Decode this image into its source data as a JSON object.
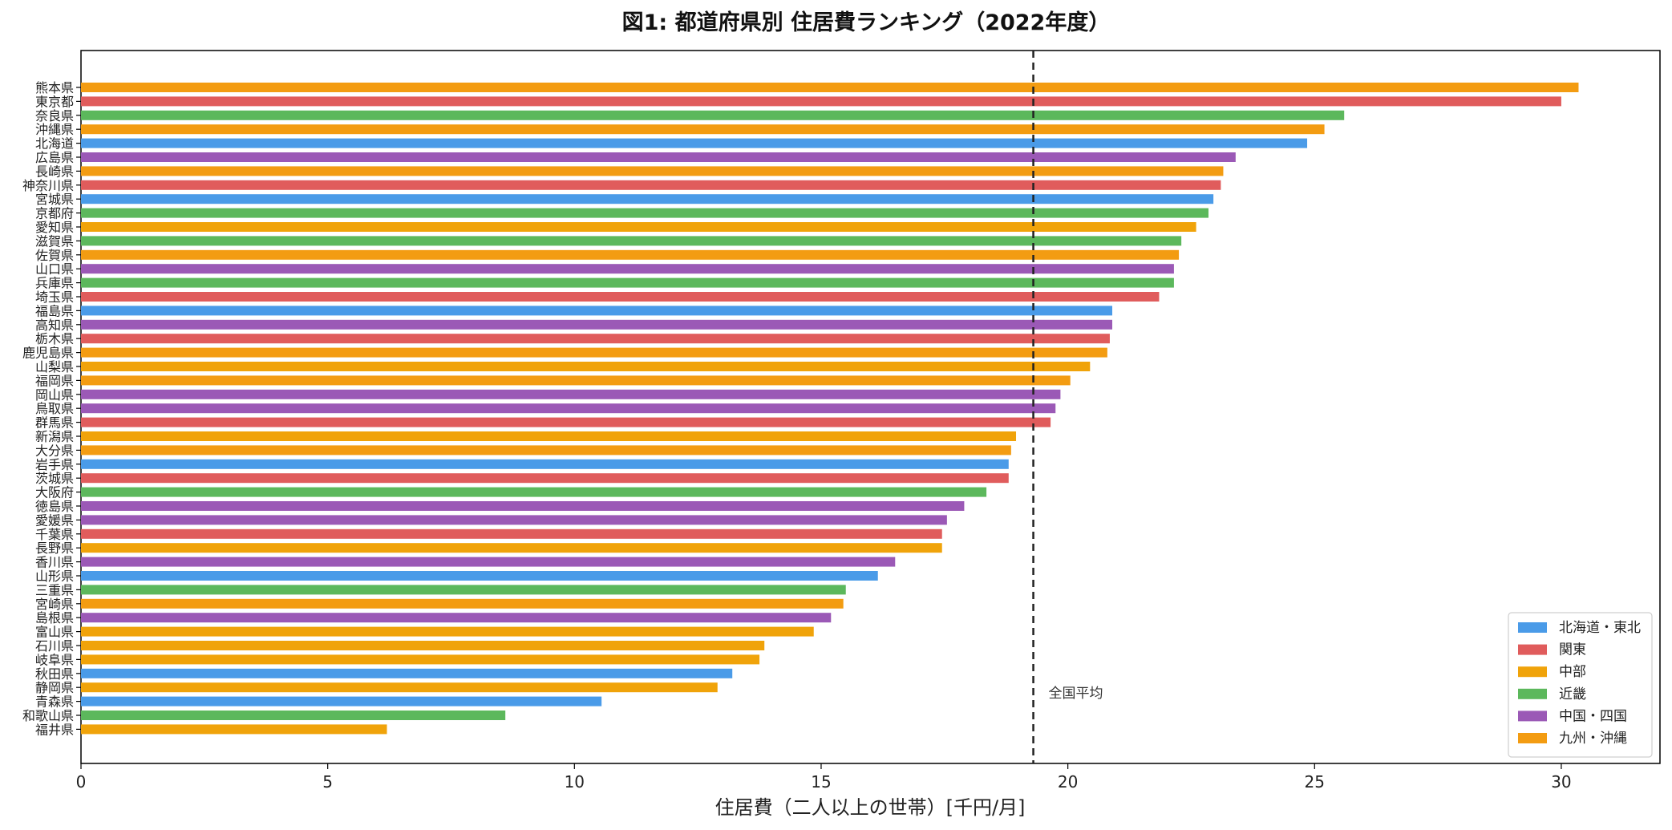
{
  "chart_data": {
    "type": "bar",
    "orientation": "horizontal",
    "title": "図1: 都道府県別 住居費ランキング（2022年度）",
    "xlabel": "住居費（二人以上の世帯）[千円/月]",
    "ylabel": "",
    "xlim": [
      0,
      32
    ],
    "xticks": [
      0,
      5,
      10,
      15,
      20,
      25,
      30
    ],
    "grid": false,
    "legend_position": "bottom-right",
    "regions": [
      {
        "name": "北海道・東北",
        "color": "#4a9be8"
      },
      {
        "name": "関東",
        "color": "#e05c5c"
      },
      {
        "name": "中部",
        "color": "#f0a30a"
      },
      {
        "name": "近畿",
        "color": "#5cb85c"
      },
      {
        "name": "中国・四国",
        "color": "#9b59b6"
      },
      {
        "name": "九州・沖縄",
        "color": "#f39c12"
      }
    ],
    "reference_line": {
      "label": "全国平均",
      "value": 19.3,
      "style": "dashed",
      "color": "#222222"
    },
    "bars": [
      {
        "category": "熊本県",
        "value": 30.35,
        "region": 5
      },
      {
        "category": "東京都",
        "value": 30.0,
        "region": 1
      },
      {
        "category": "奈良県",
        "value": 25.6,
        "region": 3
      },
      {
        "category": "沖縄県",
        "value": 25.2,
        "region": 5
      },
      {
        "category": "北海道",
        "value": 24.85,
        "region": 0
      },
      {
        "category": "広島県",
        "value": 23.4,
        "region": 4
      },
      {
        "category": "長崎県",
        "value": 23.15,
        "region": 5
      },
      {
        "category": "神奈川県",
        "value": 23.1,
        "region": 1
      },
      {
        "category": "宮城県",
        "value": 22.95,
        "region": 0
      },
      {
        "category": "京都府",
        "value": 22.85,
        "region": 3
      },
      {
        "category": "愛知県",
        "value": 22.6,
        "region": 2
      },
      {
        "category": "滋賀県",
        "value": 22.3,
        "region": 3
      },
      {
        "category": "佐賀県",
        "value": 22.25,
        "region": 5
      },
      {
        "category": "山口県",
        "value": 22.15,
        "region": 4
      },
      {
        "category": "兵庫県",
        "value": 22.15,
        "region": 3
      },
      {
        "category": "埼玉県",
        "value": 21.85,
        "region": 1
      },
      {
        "category": "福島県",
        "value": 20.9,
        "region": 0
      },
      {
        "category": "高知県",
        "value": 20.9,
        "region": 4
      },
      {
        "category": "栃木県",
        "value": 20.85,
        "region": 1
      },
      {
        "category": "鹿児島県",
        "value": 20.8,
        "region": 5
      },
      {
        "category": "山梨県",
        "value": 20.45,
        "region": 2
      },
      {
        "category": "福岡県",
        "value": 20.05,
        "region": 5
      },
      {
        "category": "岡山県",
        "value": 19.85,
        "region": 4
      },
      {
        "category": "鳥取県",
        "value": 19.75,
        "region": 4
      },
      {
        "category": "群馬県",
        "value": 19.65,
        "region": 1
      },
      {
        "category": "新潟県",
        "value": 18.95,
        "region": 2
      },
      {
        "category": "大分県",
        "value": 18.85,
        "region": 5
      },
      {
        "category": "岩手県",
        "value": 18.8,
        "region": 0
      },
      {
        "category": "茨城県",
        "value": 18.8,
        "region": 1
      },
      {
        "category": "大阪府",
        "value": 18.35,
        "region": 3
      },
      {
        "category": "徳島県",
        "value": 17.9,
        "region": 4
      },
      {
        "category": "愛媛県",
        "value": 17.55,
        "region": 4
      },
      {
        "category": "千葉県",
        "value": 17.45,
        "region": 1
      },
      {
        "category": "長野県",
        "value": 17.45,
        "region": 2
      },
      {
        "category": "香川県",
        "value": 16.5,
        "region": 4
      },
      {
        "category": "山形県",
        "value": 16.15,
        "region": 0
      },
      {
        "category": "三重県",
        "value": 15.5,
        "region": 3
      },
      {
        "category": "宮崎県",
        "value": 15.45,
        "region": 5
      },
      {
        "category": "島根県",
        "value": 15.2,
        "region": 4
      },
      {
        "category": "富山県",
        "value": 14.85,
        "region": 2
      },
      {
        "category": "石川県",
        "value": 13.85,
        "region": 2
      },
      {
        "category": "岐阜県",
        "value": 13.75,
        "region": 2
      },
      {
        "category": "秋田県",
        "value": 13.2,
        "region": 0
      },
      {
        "category": "静岡県",
        "value": 12.9,
        "region": 2
      },
      {
        "category": "青森県",
        "value": 10.55,
        "region": 0
      },
      {
        "category": "和歌山県",
        "value": 8.6,
        "region": 3
      },
      {
        "category": "福井県",
        "value": 6.2,
        "region": 2
      }
    ]
  }
}
